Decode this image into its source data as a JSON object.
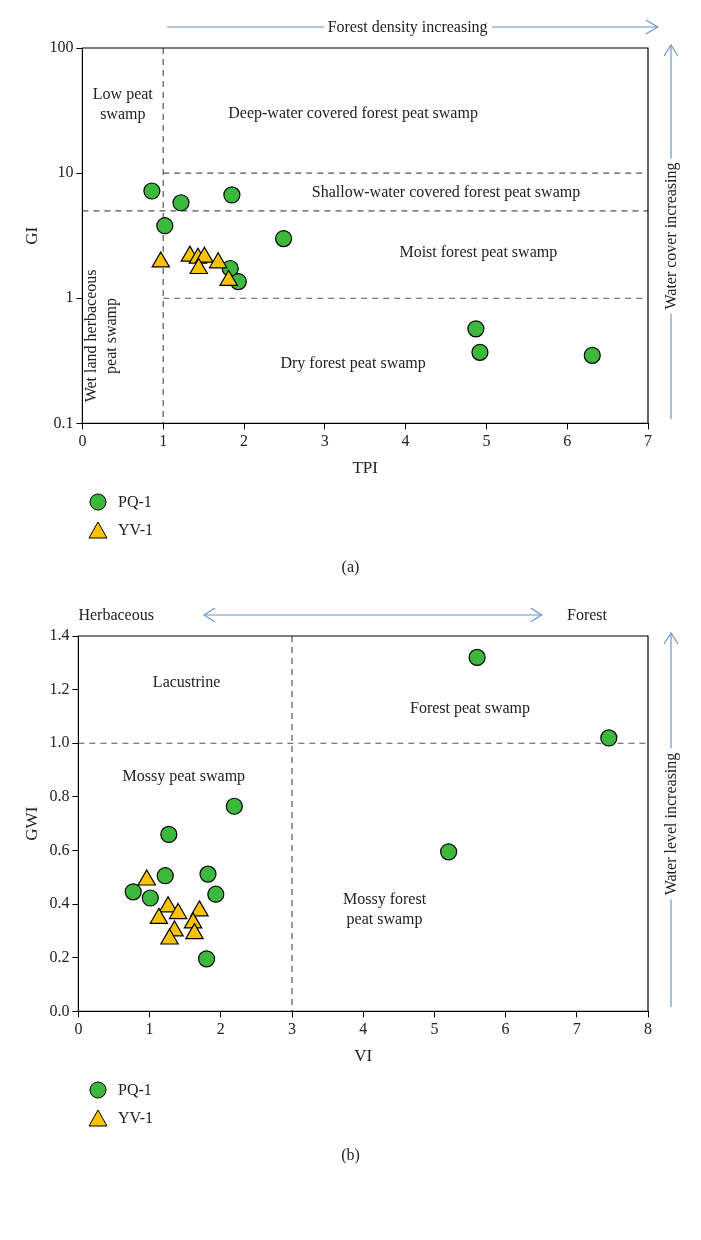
{
  "chart_data": [
    {
      "type": "scatter",
      "title": "(a)",
      "xlabel": "TPI",
      "ylabel": "GI",
      "log": "y",
      "legend": "bottom",
      "xlim": [
        0,
        7
      ],
      "xticks": [
        0,
        1,
        2,
        3,
        4,
        5,
        6,
        7
      ],
      "ylim": [
        0.1,
        100
      ],
      "yticks": [
        0.1,
        1,
        10,
        100
      ],
      "series": [
        {
          "name": "PQ-1",
          "color": "#3cb93c",
          "marker": "circle",
          "x": [
            0.86,
            1.22,
            1.85,
            1.02,
            2.49,
            1.83,
            1.93,
            4.87,
            4.92,
            6.31
          ],
          "values": [
            7.2,
            5.8,
            6.7,
            3.8,
            3.0,
            1.73,
            1.36,
            0.57,
            0.37,
            0.35
          ]
        },
        {
          "name": "YV-1",
          "color": "#f9c300",
          "marker": "triangle",
          "x": [
            0.97,
            1.33,
            1.43,
            1.51,
            1.68,
            1.44,
            1.81
          ],
          "values": [
            1.95,
            2.17,
            2.09,
            2.13,
            1.92,
            1.73,
            1.39
          ]
        },
        {
          "type": "line",
          "color": "#555555",
          "line_style": "dashed",
          "marker": "none",
          "x": [
            1,
            7
          ],
          "values": [
            10,
            10
          ]
        },
        {
          "type": "line",
          "color": "#555555",
          "line_style": "dashed",
          "marker": "none",
          "x": [
            1,
            7
          ],
          "values": [
            1,
            1
          ]
        }
      ],
      "ref_lines": [
        {
          "axis": "x",
          "value": 1,
          "color": "#555555",
          "line_style": "dashed"
        },
        {
          "axis": "y",
          "value": 5,
          "color": "#555555",
          "line_style": "dashed"
        }
      ],
      "annotations": [
        "Forest density increasing",
        "Water cover increasing",
        "Low peat swamp",
        "Deep-water covered forest peat swamp",
        "Shallow-water covered forest peat swamp",
        "Moist forest peat swamp",
        "Dry forest peat swamp",
        "Wet land herbaceous peat swamp"
      ]
    },
    {
      "type": "scatter",
      "title": "(b)",
      "xlabel": "VI",
      "ylabel": "GWI",
      "legend": "bottom",
      "xlim": [
        0,
        8
      ],
      "xticks": [
        0,
        1,
        2,
        3,
        4,
        5,
        6,
        7,
        8
      ],
      "ylim": [
        0,
        1.4
      ],
      "yticks": [
        {
          "value": 0,
          "label": "0.0"
        },
        0.2,
        0.4,
        0.6,
        0.8,
        {
          "value": 1,
          "label": "1.0"
        },
        1.2,
        1.4
      ],
      "series": [
        {
          "name": "PQ-1",
          "color": "#3cb93c",
          "marker": "circle",
          "x": [
            0.77,
            1.01,
            1.22,
            1.27,
            1.82,
            1.93,
            1.8,
            2.19,
            5.6,
            5.2,
            7.45
          ],
          "values": [
            0.446,
            0.423,
            0.506,
            0.66,
            0.512,
            0.437,
            0.196,
            0.765,
            1.32,
            0.595,
            1.02
          ]
        },
        {
          "name": "YV-1",
          "color": "#f9c300",
          "marker": "triangle",
          "x": [
            0.96,
            1.26,
            1.4,
            1.7,
            1.13,
            1.61,
            1.35,
            1.63,
            1.28
          ],
          "values": [
            0.49,
            0.39,
            0.365,
            0.375,
            0.347,
            0.33,
            0.3,
            0.29,
            0.27
          ]
        }
      ],
      "ref_lines": [
        {
          "axis": "x",
          "value": 3,
          "color": "#555555",
          "line_style": "dashed"
        },
        {
          "axis": "y",
          "value": 1,
          "color": "#555555",
          "line_style": "dashed"
        }
      ],
      "annotations": [
        "Herbaceous",
        "Forest",
        "Water level increasing",
        "Lacustrine",
        "Forest peat swamp",
        "Mossy peat swamp",
        "Mossy forest peat swamp"
      ]
    }
  ]
}
